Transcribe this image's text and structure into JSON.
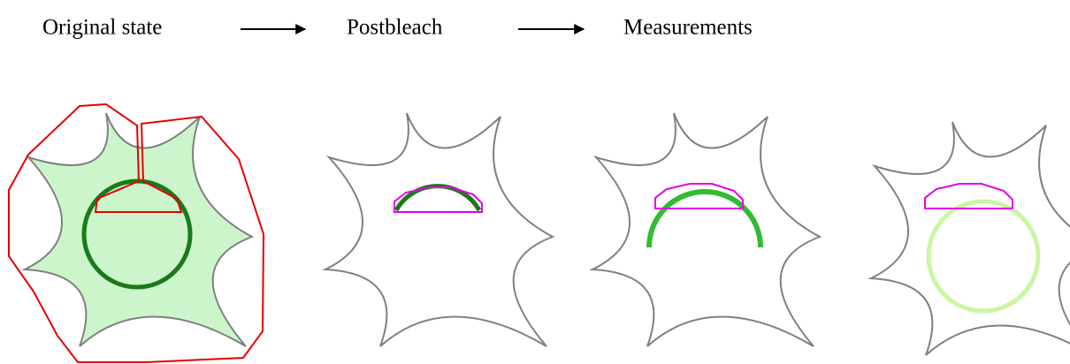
{
  "steps": [
    "Original state",
    "Postbleach",
    "Measurements"
  ]
}
